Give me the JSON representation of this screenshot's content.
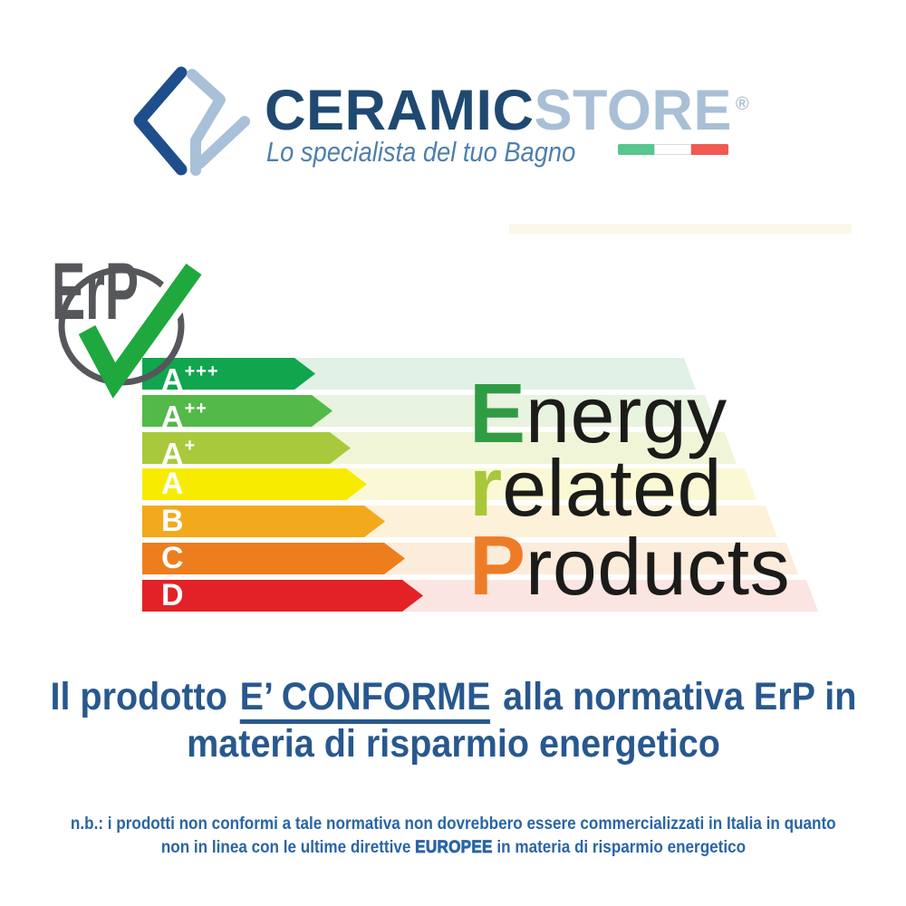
{
  "header": {
    "brand_primary": "CERAMIC",
    "brand_secondary": "STORE",
    "registered_mark": "®",
    "tagline": "Lo specialista del tuo Bagno"
  },
  "erp_graphic": {
    "logo_text": "ErP",
    "ratings": [
      {
        "label": "A",
        "sup": "+++",
        "color": "#0fa64e",
        "band": "#e1f1e6"
      },
      {
        "label": "A",
        "sup": "++",
        "color": "#53b948",
        "band": "#e8f3e0"
      },
      {
        "label": "A",
        "sup": "+",
        "color": "#a9c93c",
        "band": "#f0f5d8"
      },
      {
        "label": "A",
        "sup": "",
        "color": "#f7ec00",
        "band": "#fbf9d5"
      },
      {
        "label": "B",
        "sup": "",
        "color": "#f3a91c",
        "band": "#fdf2d9"
      },
      {
        "label": "C",
        "sup": "",
        "color": "#ee7e1d",
        "band": "#fcecdc"
      },
      {
        "label": "D",
        "sup": "",
        "color": "#e32227",
        "band": "#fae5e2"
      }
    ],
    "headline": {
      "lines": [
        {
          "initial": "E",
          "rest": "nergy",
          "color": "#2f9c44"
        },
        {
          "initial": "r",
          "rest": "elated",
          "color": "#a9c73b"
        },
        {
          "initial": "P",
          "rest": "roducts",
          "color": "#ee7c26"
        }
      ]
    }
  },
  "title": {
    "prefix": "Il prodotto ",
    "emphasis": "E’ CONFORME",
    "suffix": " alla normativa ErP in",
    "line2": "materia di risparmio energetico"
  },
  "note": {
    "line1": "n.b.: i prodotti non conformi a tale normativa non dovrebbero essere commercializzati in Italia in quanto",
    "line2_prefix": "non in linea con le ultime direttive ",
    "line2_emphasis": "EUROPEE",
    "line2_suffix": " in materia di risparmio energetico"
  },
  "colors": {
    "brand_primary": "#1f4971",
    "brand_secondary": "#a8bfd6",
    "reg_mark": "#aebfd0",
    "tagline": "#4d7fae",
    "flag_green": "#57c68f",
    "flag_red": "#f05a52",
    "logo_dark_blue": "#1e4e8c",
    "logo_light_blue": "#a9c0d9",
    "erp_gray": "#55575b",
    "check_green": "#1ea83d",
    "headline_text": "#1b1b19",
    "title_blue": "#28588f",
    "note_blue": "#2a65a5"
  }
}
